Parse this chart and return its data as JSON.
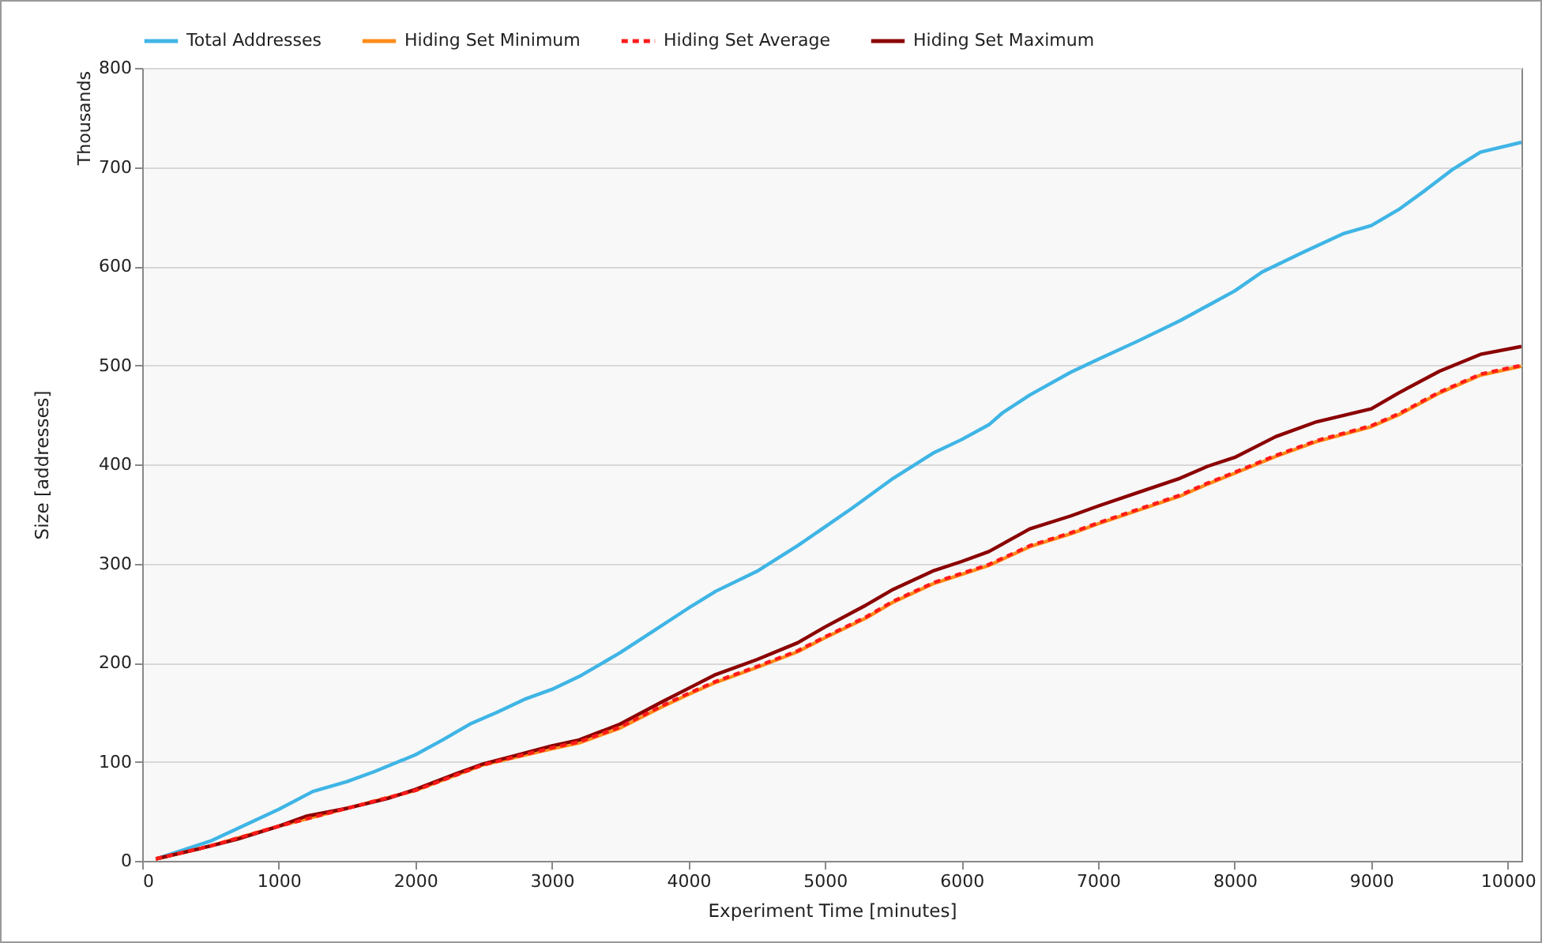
{
  "chart_data": {
    "type": "line",
    "xlabel": "Experiment Time [minutes]",
    "ylabel": "Size [addresses]",
    "annotations": [
      "Thousands"
    ],
    "xlim": [
      0,
      10100
    ],
    "xticks": [
      0,
      1000,
      2000,
      3000,
      4000,
      5000,
      6000,
      7000,
      8000,
      9000,
      10000
    ],
    "ylim": [
      0,
      800
    ],
    "yticks": [
      0,
      100,
      200,
      300,
      400,
      500,
      600,
      700,
      800
    ],
    "grid": "y",
    "legend": "top",
    "marker": "none",
    "series": [
      {
        "name": "Total Addresses",
        "color": "#3fb5e5",
        "line_style": "solid",
        "x": [
          100,
          500,
          1000,
          1250,
          1500,
          1700,
          2000,
          2200,
          2400,
          2600,
          2800,
          3000,
          3200,
          3400,
          3500,
          3700,
          4000,
          4200,
          4500,
          4800,
          5000,
          5200,
          5500,
          5800,
          6000,
          6200,
          6300,
          6500,
          6800,
          7000,
          7300,
          7600,
          7800,
          8000,
          8200,
          8500,
          8800,
          9000,
          9200,
          9400,
          9600,
          9800,
          10100
        ],
        "values": [
          2,
          20,
          52,
          70,
          80,
          90,
          107,
          122,
          138,
          150,
          163,
          173,
          186,
          202,
          210,
          228,
          255,
          272,
          292,
          318,
          337,
          356,
          386,
          412,
          425,
          440,
          452,
          470,
          493,
          506,
          525,
          545,
          560,
          575,
          594,
          614,
          633,
          641,
          657,
          677,
          698,
          715,
          725
        ]
      },
      {
        "name": "Hiding Set Minimum",
        "color": "#ff8c1a",
        "line_style": "solid",
        "x": [
          100,
          500,
          1000,
          1500,
          2000,
          2500,
          3000,
          3200,
          3500,
          3800,
          4000,
          4200,
          4500,
          4800,
          5000,
          5300,
          5500,
          5800,
          6000,
          6200,
          6500,
          6800,
          7000,
          7300,
          7600,
          7800,
          8000,
          8300,
          8600,
          9000,
          9200,
          9500,
          9800,
          10100
        ],
        "values": [
          2,
          15,
          35,
          53,
          71,
          97,
          113,
          119,
          134,
          155,
          168,
          180,
          195,
          211,
          225,
          245,
          261,
          280,
          289,
          298,
          317,
          330,
          340,
          354,
          368,
          380,
          391,
          408,
          423,
          438,
          450,
          472,
          490,
          499
        ]
      },
      {
        "name": "Hiding Set Average",
        "color": "#ff1a1a",
        "line_style": "dashed",
        "x": [
          100,
          500,
          1000,
          1500,
          2000,
          2500,
          3000,
          3200,
          3500,
          3800,
          4000,
          4200,
          4500,
          4800,
          5000,
          5300,
          5500,
          5800,
          6000,
          6200,
          6500,
          6800,
          7000,
          7300,
          7600,
          7800,
          8000,
          8300,
          8600,
          9000,
          9200,
          9500,
          9800,
          10100
        ],
        "values": [
          2,
          15,
          35,
          53,
          71,
          97,
          114,
          120,
          135,
          156,
          169,
          181,
          196,
          212,
          226,
          246,
          262,
          281,
          290,
          299,
          318,
          331,
          341,
          355,
          369,
          381,
          392,
          409,
          424,
          439,
          451,
          473,
          491,
          500
        ]
      },
      {
        "name": "Hiding Set Maximum",
        "color": "#8b0000",
        "line_style": "solid",
        "x": [
          100,
          500,
          700,
          1000,
          1200,
          1500,
          1800,
          2000,
          2300,
          2500,
          2700,
          3000,
          3200,
          3500,
          3800,
          4000,
          4200,
          4500,
          4800,
          5000,
          5300,
          5500,
          5800,
          6000,
          6200,
          6500,
          6800,
          7000,
          7300,
          7600,
          7800,
          8000,
          8300,
          8600,
          9000,
          9200,
          9500,
          9800,
          10100
        ],
        "values": [
          2,
          15,
          22,
          35,
          45,
          53,
          63,
          72,
          88,
          98,
          105,
          116,
          122,
          138,
          160,
          174,
          188,
          203,
          220,
          236,
          258,
          274,
          293,
          302,
          312,
          335,
          348,
          358,
          372,
          386,
          398,
          407,
          428,
          443,
          456,
          472,
          494,
          511,
          519
        ]
      }
    ]
  }
}
